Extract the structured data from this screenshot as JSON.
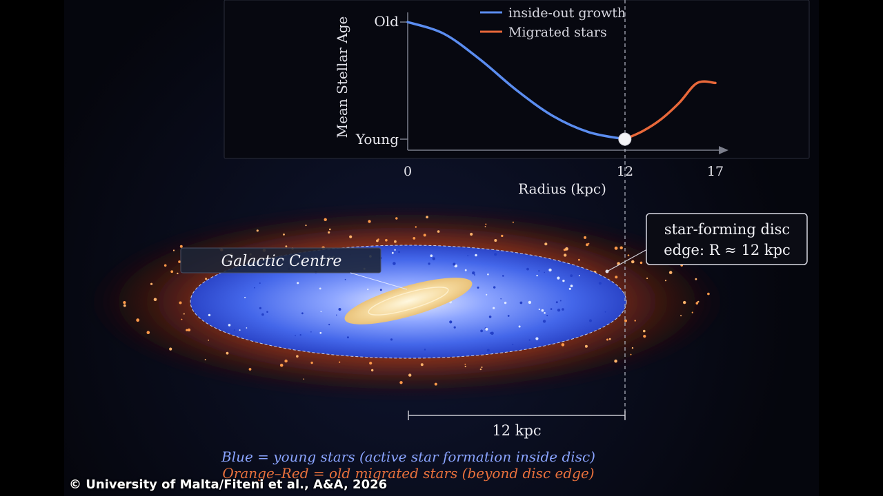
{
  "chart_data": {
    "type": "line",
    "xlabel": "Radius (kpc)",
    "ylabel": "Mean Stellar Age",
    "x_ticks": [
      "0",
      "12",
      "17"
    ],
    "y_ticks": [
      "Young",
      "Old"
    ],
    "xlim": [
      0,
      17
    ],
    "series": [
      {
        "name": "inside-out growth",
        "color": "#5b8df0",
        "x": [
          0,
          2,
          4,
          6,
          8,
          10,
          12
        ],
        "y": [
          1.0,
          0.9,
          0.68,
          0.42,
          0.2,
          0.06,
          0.0
        ]
      },
      {
        "name": "Migrated stars",
        "color": "#e8683a",
        "x": [
          12,
          13,
          14,
          15,
          16,
          17
        ],
        "y": [
          0.0,
          0.07,
          0.17,
          0.31,
          0.48,
          0.48
        ]
      }
    ],
    "marker": {
      "x": 12,
      "y": 0.0
    },
    "legend": "top-center",
    "grid": false
  },
  "diagram": {
    "centre_label": "Galactic Centre",
    "edge_callout_line1": "star-forming disc",
    "edge_callout_line2": "edge: R ≈ 12 kpc",
    "scale_bar_label": "12 kpc",
    "caption_blue": "Blue = young stars (active star formation inside disc)",
    "caption_orange": "Orange–Red = old migrated stars (beyond disc edge)",
    "colors": {
      "young": "#3d63e6",
      "old": "#e0622c",
      "core": "#f6dba0",
      "caption_blue": "#8aa4ff",
      "caption_orange": "#e8703c"
    }
  },
  "credit": "© University of Malta/Fiteni et al., A&A, 2026"
}
